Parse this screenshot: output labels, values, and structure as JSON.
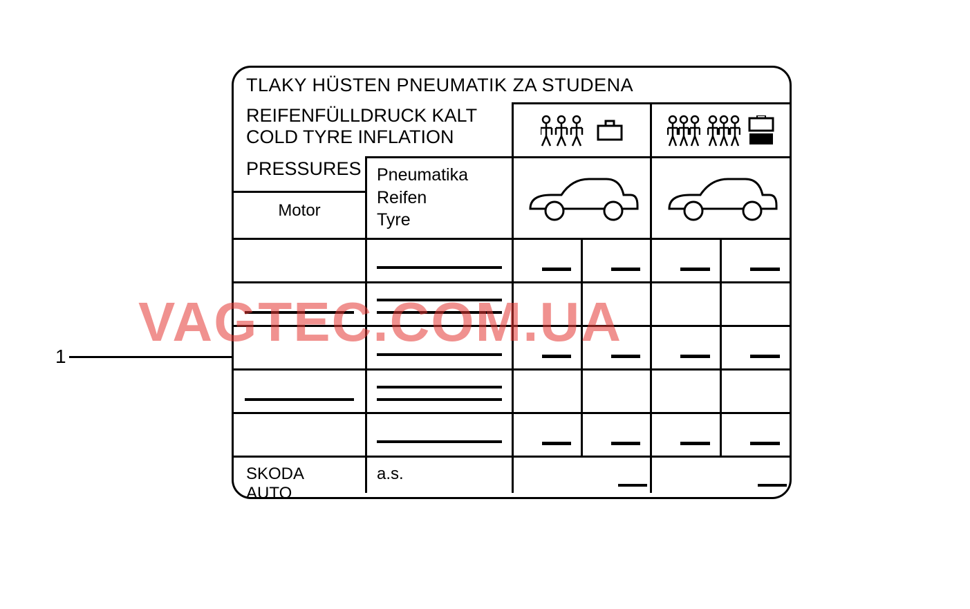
{
  "callout": {
    "number": "1"
  },
  "label": {
    "title_line1": "TLAKY HÜSTEN PNEUMATIK ZA STUDENA",
    "title_line2": "REIFENFÜLLDRUCK KALT",
    "title_line3": "COLD TYRE INFLATION",
    "title_line4": "PRESSURES",
    "motor_label": "Motor",
    "tyre_labels": {
      "l1": "Pneumatika",
      "l2": "Reifen",
      "l3": "Tyre"
    },
    "footer_left": "SKODA AUTO",
    "footer_company": "a.s."
  },
  "icons": {
    "col1_people_groups": 1,
    "col1_people_per_group": 3,
    "col1_luggage_filled": false,
    "col2_people_groups": 2,
    "col2_people_per_group": 3,
    "col2_luggage_filled": true
  },
  "data_rows": [
    {
      "c1_lines": 0,
      "c2_lines": 1,
      "c3_small": true,
      "c4_small": true,
      "c5_small": true,
      "c6_small": true
    },
    {
      "c1_lines": 1,
      "c2_lines": 2,
      "c3_small": false,
      "c4_small": false,
      "c5_small": false,
      "c6_small": false
    },
    {
      "c1_lines": 0,
      "c2_lines": 1,
      "c3_small": true,
      "c4_small": true,
      "c5_small": true,
      "c6_small": true
    },
    {
      "c1_lines": 1,
      "c2_lines": 2,
      "c3_small": false,
      "c4_small": false,
      "c5_small": false,
      "c6_small": false
    },
    {
      "c1_lines": 0,
      "c2_lines": 1,
      "c3_small": true,
      "c4_small": true,
      "c5_small": true,
      "c6_small": true
    }
  ],
  "watermark": "VAGTEC.COM.UA",
  "style": {
    "border_color": "#000000",
    "border_width": 3,
    "border_radius": 28,
    "background": "#ffffff",
    "text_color": "#000000",
    "watermark_color": "#e53935",
    "watermark_opacity": 0.55,
    "font_title": 27,
    "font_cell": 24
  }
}
